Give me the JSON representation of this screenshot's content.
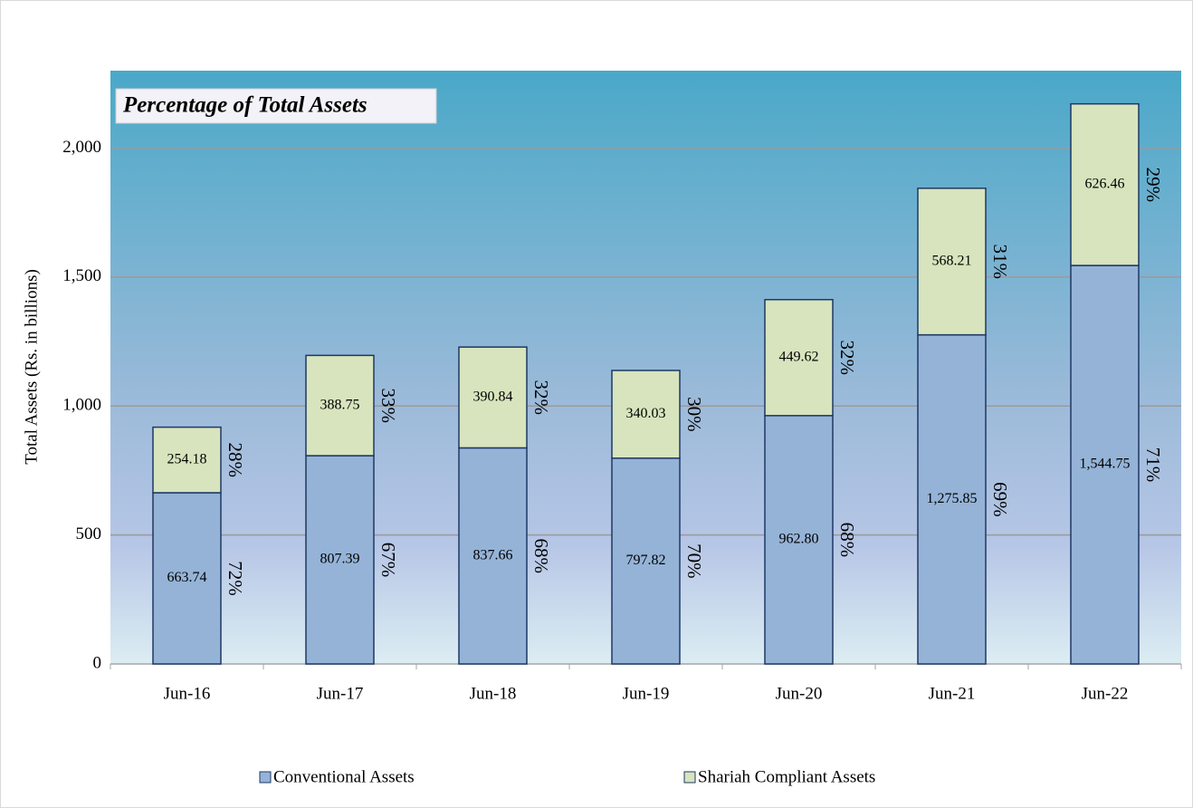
{
  "chart_data": {
    "type": "stacked_bar",
    "title": "Percentage of Total Assets",
    "y_label": "Total Assets  (Rs. in billions)",
    "categories": [
      "Jun-16",
      "Jun-17",
      "Jun-18",
      "Jun-19",
      "Jun-20",
      "Jun-21",
      "Jun-22"
    ],
    "series": [
      {
        "name": "Conventional Assets",
        "color": "#95b3d7",
        "values": [
          663.74,
          807.39,
          837.66,
          797.82,
          962.8,
          1275.85,
          1544.75
        ],
        "value_labels": [
          "663.74",
          "807.39",
          "837.66",
          "797.82",
          "962.80",
          "1,275.85",
          "1,544.75"
        ],
        "percent_labels": [
          "72%",
          "67%",
          "68%",
          "70%",
          "68%",
          "69%",
          "71%"
        ]
      },
      {
        "name": "Shariah Compliant Assets",
        "color": "#d7e4bd",
        "values": [
          254.18,
          388.75,
          390.84,
          340.03,
          449.62,
          568.21,
          626.46
        ],
        "value_labels": [
          "254.18",
          "388.75",
          "390.84",
          "340.03",
          "449.62",
          "568.21",
          "626.46"
        ],
        "percent_labels": [
          "28%",
          "33%",
          "32%",
          "30%",
          "32%",
          "31%",
          "29%"
        ]
      }
    ],
    "ylim": [
      0,
      2300
    ],
    "yticks": [
      0,
      500,
      {
        "value": 1000,
        "label": "1,000"
      },
      {
        "value": 1500,
        "label": "1,500"
      },
      {
        "value": 2000,
        "label": "2,000"
      }
    ],
    "grid": true,
    "legend": "bottom"
  }
}
